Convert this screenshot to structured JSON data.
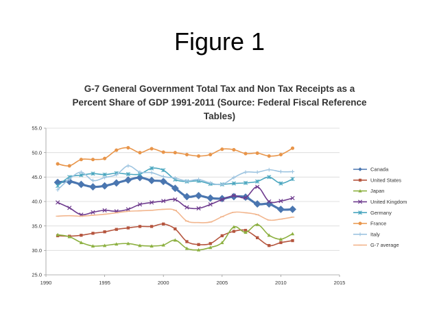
{
  "slide": {
    "title": "Figure 1"
  },
  "chart_data": {
    "type": "line",
    "title_lines": [
      "G-7 General Government Total Tax and Non Tax Receipts as a",
      "Percent Share of GDP 1991-2011 (Source: Federal Fiscal Reference",
      "Tables)"
    ],
    "xlabel": "",
    "ylabel": "",
    "xlim": [
      1990,
      2015
    ],
    "ylim": [
      25.0,
      55.0
    ],
    "x_ticks": [
      "1990",
      "1995",
      "2000",
      "2005",
      "2010",
      "2015"
    ],
    "x_tick_values": [
      1990,
      1995,
      2000,
      2005,
      2010,
      2015
    ],
    "y_ticks": [
      "25.0",
      "30.0",
      "35.0",
      "40.0",
      "45.0",
      "50.0",
      "55.0"
    ],
    "y_tick_values": [
      25,
      30,
      35,
      40,
      45,
      50,
      55
    ],
    "grid": "horizontal",
    "legend_position": "right",
    "x": [
      1991,
      1992,
      1993,
      1994,
      1995,
      1996,
      1997,
      1998,
      1999,
      2000,
      2001,
      2002,
      2003,
      2004,
      2005,
      2006,
      2007,
      2008,
      2009,
      2010,
      2011
    ],
    "series": [
      {
        "name": "Canada",
        "color": "#4a76b0",
        "marker": "diamond",
        "emphasis": true,
        "values": [
          43.9,
          44.1,
          43.5,
          43.0,
          43.2,
          43.8,
          44.4,
          44.9,
          44.3,
          44.1,
          42.7,
          41.0,
          41.2,
          40.7,
          40.6,
          41.0,
          40.9,
          39.5,
          39.5,
          38.4,
          38.4
        ]
      },
      {
        "name": "United States",
        "color": "#b5553e",
        "marker": "square",
        "emphasis": false,
        "values": [
          33.0,
          32.9,
          33.1,
          33.5,
          33.8,
          34.3,
          34.6,
          34.9,
          34.9,
          35.4,
          34.4,
          31.8,
          31.2,
          31.4,
          33.0,
          33.9,
          34.1,
          32.6,
          31.0,
          31.6,
          32.0
        ]
      },
      {
        "name": "Japan",
        "color": "#8cb040",
        "marker": "triangle",
        "emphasis": false,
        "values": [
          33.2,
          32.8,
          31.6,
          30.9,
          31.0,
          31.3,
          31.4,
          31.0,
          30.9,
          31.1,
          32.1,
          30.4,
          30.1,
          30.6,
          31.6,
          34.8,
          33.7,
          35.3,
          33.1,
          32.3,
          33.4
        ]
      },
      {
        "name": "United Kingdom",
        "color": "#6e3b8e",
        "marker": "x",
        "emphasis": false,
        "values": [
          39.8,
          38.7,
          37.3,
          37.8,
          38.2,
          38.0,
          38.4,
          39.4,
          39.8,
          40.1,
          40.4,
          38.8,
          38.6,
          39.4,
          40.4,
          41.2,
          40.8,
          43.0,
          40.0,
          40.1,
          40.7
        ]
      },
      {
        "name": "Germany",
        "color": "#4aa6bf",
        "marker": "asterisk",
        "emphasis": false,
        "values": [
          43.2,
          45.0,
          45.4,
          45.7,
          45.5,
          45.8,
          45.6,
          45.6,
          46.8,
          46.4,
          44.5,
          44.1,
          44.2,
          43.6,
          43.5,
          43.7,
          43.8,
          44.1,
          45.0,
          43.7,
          44.6
        ]
      },
      {
        "name": "France",
        "color": "#e8954a",
        "marker": "circle",
        "emphasis": false,
        "values": [
          47.7,
          47.3,
          48.6,
          48.6,
          48.8,
          50.5,
          51.0,
          50.0,
          50.8,
          50.1,
          50.0,
          49.6,
          49.3,
          49.6,
          50.7,
          50.6,
          49.8,
          49.9,
          49.3,
          49.6,
          50.9
        ]
      },
      {
        "name": "Italy",
        "color": "#9dc4e0",
        "marker": "plus",
        "emphasis": false,
        "values": [
          42.4,
          44.6,
          46.0,
          44.3,
          44.9,
          45.5,
          47.3,
          46.0,
          45.9,
          45.1,
          44.8,
          44.2,
          44.5,
          43.8,
          43.5,
          44.9,
          46.0,
          46.0,
          46.5,
          46.1,
          46.1
        ]
      },
      {
        "name": "G-7 average",
        "color": "#f2b68e",
        "marker": "dash",
        "emphasis": false,
        "values": [
          37.0,
          37.1,
          37.0,
          37.2,
          37.4,
          37.7,
          38.0,
          38.1,
          38.2,
          38.4,
          38.2,
          36.0,
          35.7,
          35.8,
          36.9,
          37.8,
          37.7,
          37.3,
          36.2,
          36.4,
          36.8
        ]
      }
    ]
  }
}
